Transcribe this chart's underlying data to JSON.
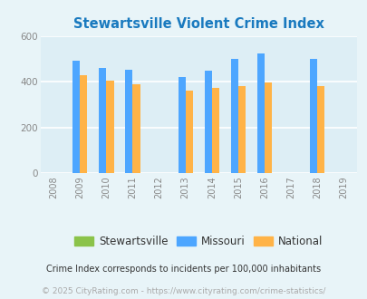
{
  "title": "Stewartsville Violent Crime Index",
  "title_color": "#1a7abf",
  "years": [
    2008,
    2009,
    2010,
    2011,
    2012,
    2013,
    2014,
    2015,
    2016,
    2017,
    2018,
    2019
  ],
  "data_years": [
    2009,
    2010,
    2011,
    2013,
    2014,
    2015,
    2016,
    2018
  ],
  "stewartsville": [
    0,
    0,
    0,
    0,
    0,
    0,
    0,
    0
  ],
  "missouri": [
    493,
    460,
    452,
    422,
    447,
    500,
    522,
    500
  ],
  "national": [
    429,
    404,
    388,
    363,
    373,
    383,
    398,
    380
  ],
  "stewartsville_color": "#8bc34a",
  "missouri_color": "#4da6ff",
  "national_color": "#ffb347",
  "background_color": "#e8f4f8",
  "plot_bg_color": "#ddeef5",
  "grid_color": "#ffffff",
  "ylim": [
    0,
    600
  ],
  "yticks": [
    0,
    200,
    400,
    600
  ],
  "bar_width": 0.28,
  "legend_labels": [
    "Stewartsville",
    "Missouri",
    "National"
  ],
  "footnote1": "Crime Index corresponds to incidents per 100,000 inhabitants",
  "footnote2": "© 2025 CityRating.com - https://www.cityrating.com/crime-statistics/",
  "footnote2_color": "#aaaaaa",
  "footnote1_color": "#333333"
}
